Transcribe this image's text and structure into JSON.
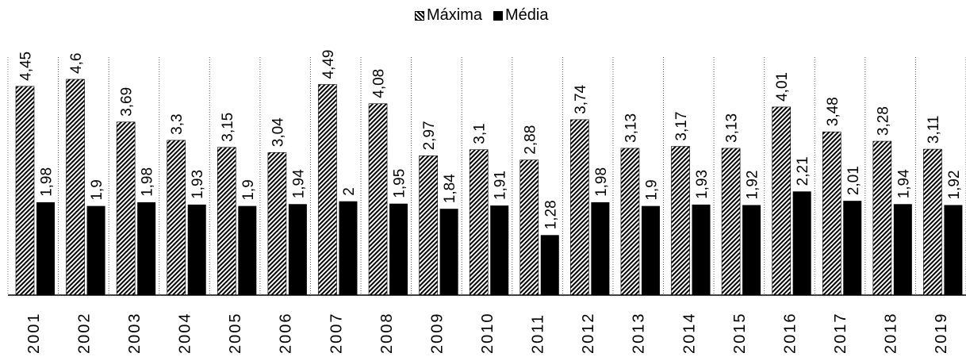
{
  "legend": {
    "series1": "Máxima",
    "series2": "Média"
  },
  "chart_data": {
    "type": "bar",
    "categories": [
      "2001",
      "2002",
      "2003",
      "2004",
      "2005",
      "2006",
      "2007",
      "2008",
      "2009",
      "2010",
      "2011",
      "2012",
      "2013",
      "2014",
      "2015",
      "2016",
      "2017",
      "2018",
      "2019"
    ],
    "series": [
      {
        "name": "Máxima",
        "pattern": "diagonal-hatch",
        "values": [
          4.45,
          4.6,
          3.69,
          3.3,
          3.15,
          3.04,
          4.49,
          4.08,
          2.97,
          3.1,
          2.88,
          3.74,
          3.13,
          3.17,
          3.13,
          4.01,
          3.48,
          3.28,
          3.11
        ],
        "labels": [
          "4,45",
          "4,6",
          "3,69",
          "3,3",
          "3,15",
          "3,04",
          "4,49",
          "4,08",
          "2,97",
          "3,1",
          "2,88",
          "3,74",
          "3,13",
          "3,17",
          "3,13",
          "4,01",
          "3,48",
          "3,28",
          "3,11"
        ]
      },
      {
        "name": "Média",
        "color": "#000000",
        "values": [
          1.98,
          1.9,
          1.98,
          1.93,
          1.9,
          1.94,
          2.0,
          1.95,
          1.84,
          1.91,
          1.28,
          1.98,
          1.9,
          1.93,
          1.92,
          2.21,
          2.01,
          1.94,
          1.92
        ],
        "labels": [
          "1,98",
          "1,9",
          "1,98",
          "1,93",
          "1,9",
          "1,94",
          "2",
          "1,95",
          "1,84",
          "1,91",
          "1,28",
          "1,98",
          "1,9",
          "1,93",
          "1,92",
          "2,21",
          "2,01",
          "1,94",
          "1,92"
        ]
      }
    ],
    "ylim": [
      0,
      4.6
    ],
    "grid": "vertical-dotted-category-separators",
    "legend_position": "top-center"
  }
}
